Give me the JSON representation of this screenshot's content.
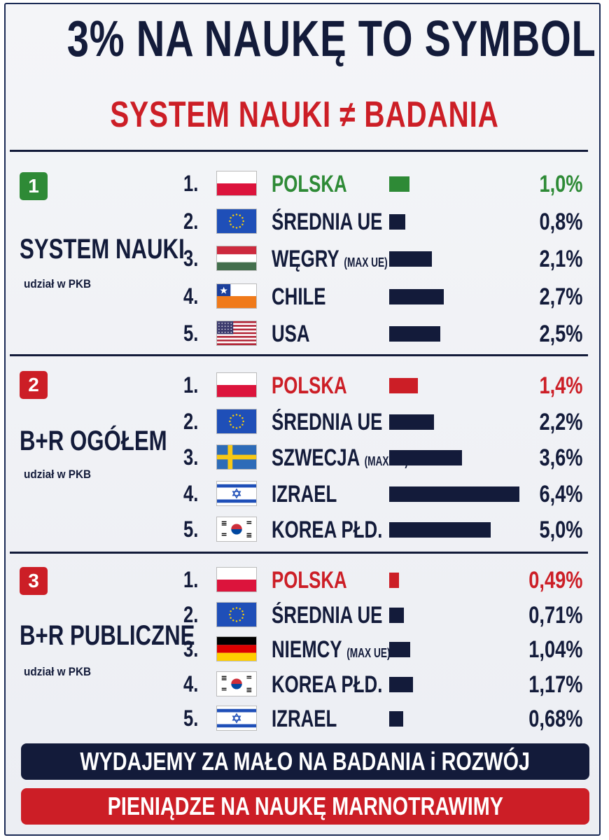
{
  "header": {
    "title": "3% NA NAUKĘ TO SYMBOL",
    "subtitle": "SYSTEM NAUKI ≠ BADANIA"
  },
  "colors": {
    "navy": "#131b3a",
    "red": "#cc1e26",
    "green": "#2e8a36",
    "background": "#eceef3"
  },
  "chart_data": [
    {
      "type": "bar",
      "badge": "1",
      "badge_color": "#2e8a36",
      "title": "SYSTEM NAUKI",
      "subtitle": "udział w PKB",
      "highlight_color": "#2e8a36",
      "rows": [
        {
          "rank": "1.",
          "flag": "poland-flag-icon",
          "country": "POLSKA",
          "note": "",
          "value": 1.0,
          "label": "1,0%",
          "highlight": true
        },
        {
          "rank": "2.",
          "flag": "eu-flag-icon",
          "country": "ŚREDNIA UE",
          "note": "",
          "value": 0.8,
          "label": "0,8%",
          "highlight": false
        },
        {
          "rank": "3.",
          "flag": "hungary-flag-icon",
          "country": "WĘGRY",
          "note": "(MAX UE)",
          "value": 2.1,
          "label": "2,1%",
          "highlight": false
        },
        {
          "rank": "4.",
          "flag": "chile-flag-icon",
          "country": "CHILE",
          "note": "",
          "value": 2.7,
          "label": "2,7%",
          "highlight": false
        },
        {
          "rank": "5.",
          "flag": "usa-flag-icon",
          "country": "USA",
          "note": "",
          "value": 2.5,
          "label": "2,5%",
          "highlight": false
        }
      ]
    },
    {
      "type": "bar",
      "badge": "2",
      "badge_color": "#cc1e26",
      "title": "B+R OGÓŁEM",
      "subtitle": "udział w PKB",
      "highlight_color": "#cc1e26",
      "rows": [
        {
          "rank": "1.",
          "flag": "poland-flag-icon",
          "country": "POLSKA",
          "note": "",
          "value": 1.4,
          "label": "1,4%",
          "highlight": true
        },
        {
          "rank": "2.",
          "flag": "eu-flag-icon",
          "country": "ŚREDNIA UE",
          "note": "",
          "value": 2.2,
          "label": "2,2%",
          "highlight": false
        },
        {
          "rank": "3.",
          "flag": "sweden-flag-icon",
          "country": "SZWECJA",
          "note": "(MAX UE)",
          "value": 3.6,
          "label": "3,6%",
          "highlight": false
        },
        {
          "rank": "4.",
          "flag": "israel-flag-icon",
          "country": "IZRAEL",
          "note": "",
          "value": 6.4,
          "label": "6,4%",
          "highlight": false
        },
        {
          "rank": "5.",
          "flag": "south-korea-flag-icon",
          "country": "KOREA PŁD.",
          "note": "",
          "value": 5.0,
          "label": "5,0%",
          "highlight": false
        }
      ]
    },
    {
      "type": "bar",
      "badge": "3",
      "badge_color": "#cc1e26",
      "title": "B+R PUBLICZNE",
      "subtitle": "udział w PKB",
      "highlight_color": "#cc1e26",
      "rows": [
        {
          "rank": "1.",
          "flag": "poland-flag-icon",
          "country": "POLSKA",
          "note": "",
          "value": 0.49,
          "label": "0,49%",
          "highlight": true
        },
        {
          "rank": "2.",
          "flag": "eu-flag-icon",
          "country": "ŚREDNIA UE",
          "note": "",
          "value": 0.71,
          "label": "0,71%",
          "highlight": false
        },
        {
          "rank": "3.",
          "flag": "germany-flag-icon",
          "country": "NIEMCY",
          "note": "(MAX UE)",
          "value": 1.04,
          "label": "1,04%",
          "highlight": false
        },
        {
          "rank": "4.",
          "flag": "south-korea-flag-icon",
          "country": "KOREA PŁD.",
          "note": "",
          "value": 1.17,
          "label": "1,17%",
          "highlight": false
        },
        {
          "rank": "5.",
          "flag": "israel-flag-icon",
          "country": "IZRAEL",
          "note": "",
          "value": 0.68,
          "label": "0,68%",
          "highlight": false
        }
      ]
    }
  ],
  "footer": {
    "banner_navy": "WYDAJEMY ZA MAŁO NA BADANIA i ROZWÓJ",
    "banner_red": "PIENIĄDZE NA NAUKĘ MARNOTRAWIMY"
  }
}
